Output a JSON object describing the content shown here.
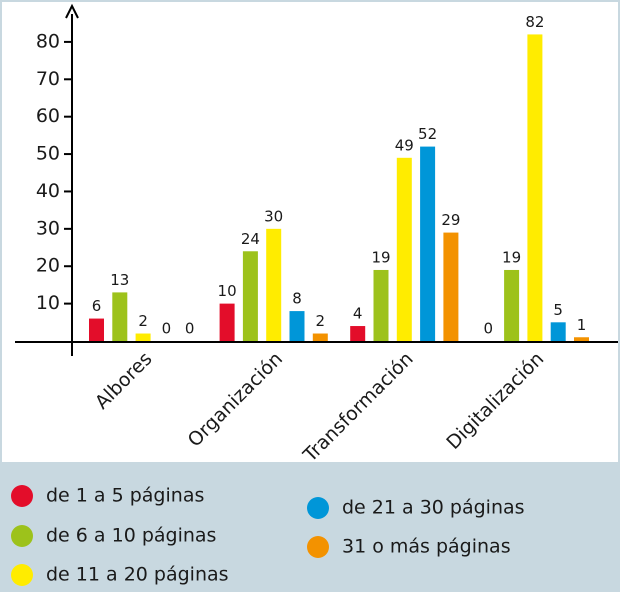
{
  "chart_data": {
    "type": "bar",
    "categories": [
      "Albores",
      "Organización",
      "Transformación",
      "Digitalización"
    ],
    "series": [
      {
        "name": "de 1 a 5 páginas",
        "color": "#e30d2a",
        "values": [
          6,
          10,
          4,
          0
        ]
      },
      {
        "name": "de 6 a 10 páginas",
        "color": "#9dc21b",
        "values": [
          13,
          24,
          19,
          19
        ]
      },
      {
        "name": "de 11 a 20 páginas",
        "color": "#ffec00",
        "values": [
          2,
          30,
          49,
          82
        ]
      },
      {
        "name": "de 21 a 30 páginas",
        "color": "#0096d8",
        "values": [
          0,
          8,
          52,
          5
        ]
      },
      {
        "name": "31 o más páginas",
        "color": "#f39200",
        "values": [
          0,
          2,
          29,
          1
        ]
      }
    ],
    "ylim": [
      0,
      88
    ],
    "yticks": [
      10,
      20,
      30,
      40,
      50,
      60,
      70,
      80
    ],
    "grid": false
  }
}
